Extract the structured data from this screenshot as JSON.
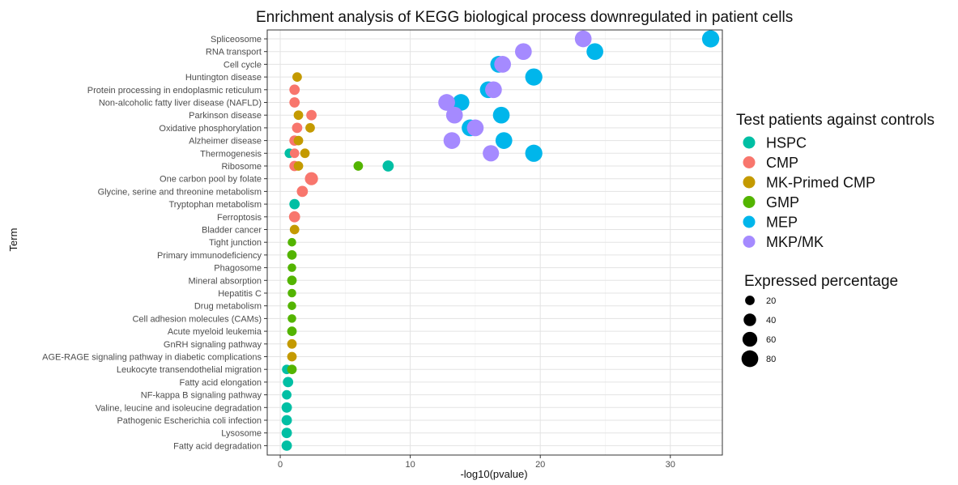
{
  "chart_data": {
    "type": "scatter",
    "title": "Enrichment analysis of KEGG biological process downregulated in patient cells",
    "xlabel": "-log10(pvalue)",
    "ylabel": "Term",
    "xlim": [
      -1,
      34
    ],
    "xticks": [
      0,
      10,
      20,
      30
    ],
    "grid": true,
    "legend_placement": "right",
    "color_legend_title": "Test patients against controls",
    "size_legend_title": "Expressed percentage",
    "size_legend_values": [
      20,
      40,
      60,
      80
    ],
    "terms": [
      "Spliceosome",
      "RNA transport",
      "Cell cycle",
      "Huntington disease",
      "Protein processing in endoplasmic reticulum",
      "Non-alcoholic fatty liver disease (NAFLD)",
      "Parkinson disease",
      "Oxidative phosphorylation",
      "Alzheimer disease",
      "Thermogenesis",
      "Ribosome",
      "One carbon pool by folate",
      "Glycine, serine and threonine metabolism",
      "Tryptophan metabolism",
      "Ferroptosis",
      "Bladder cancer",
      "Tight junction",
      "Primary immunodeficiency",
      "Phagosome",
      "Mineral absorption",
      "Hepatitis C",
      "Drug metabolism",
      "Cell adhesion molecules (CAMs)",
      "Acute myeloid leukemia",
      "GnRH signaling pathway",
      "AGE-RAGE signaling pathway in diabetic complications",
      "Leukocyte transendothelial migration",
      "Fatty acid elongation",
      "NF-kappa B signaling pathway",
      "Valine, leucine and isoleucine degradation",
      "Pathogenic Escherichia coli infection",
      "Lysosome",
      "Fatty acid degradation"
    ],
    "series": [
      {
        "name": "HSPC",
        "color": "#00BFA4",
        "points": [
          {
            "term": "Thermogenesis",
            "x": 0.7,
            "size": 20
          },
          {
            "term": "Ribosome",
            "x": 8.3,
            "size": 30
          },
          {
            "term": "Tryptophan metabolism",
            "x": 1.1,
            "size": 25
          },
          {
            "term": "Leukocyte transendothelial migration",
            "x": 0.5,
            "size": 20
          },
          {
            "term": "Fatty acid elongation",
            "x": 0.6,
            "size": 25
          },
          {
            "term": "NF-kappa B signaling pathway",
            "x": 0.5,
            "size": 20
          },
          {
            "term": "Valine, leucine and isoleucine degradation",
            "x": 0.5,
            "size": 25
          },
          {
            "term": "Pathogenic Escherichia coli infection",
            "x": 0.5,
            "size": 25
          },
          {
            "term": "Lysosome",
            "x": 0.5,
            "size": 25
          },
          {
            "term": "Fatty acid degradation",
            "x": 0.5,
            "size": 25
          }
        ]
      },
      {
        "name": "CMP",
        "color": "#F8766D",
        "points": [
          {
            "term": "Protein processing in endoplasmic reticulum",
            "x": 1.1,
            "size": 25
          },
          {
            "term": "Non-alcoholic fatty liver disease (NAFLD)",
            "x": 1.1,
            "size": 25
          },
          {
            "term": "Parkinson disease",
            "x": 2.4,
            "size": 25
          },
          {
            "term": "Oxidative phosphorylation",
            "x": 1.3,
            "size": 25
          },
          {
            "term": "Alzheimer disease",
            "x": 1.1,
            "size": 25
          },
          {
            "term": "Thermogenesis",
            "x": 1.1,
            "size": 20
          },
          {
            "term": "Ribosome",
            "x": 1.1,
            "size": 25
          },
          {
            "term": "One carbon pool by folate",
            "x": 2.4,
            "size": 45
          },
          {
            "term": "Glycine, serine and threonine metabolism",
            "x": 1.7,
            "size": 30
          },
          {
            "term": "Ferroptosis",
            "x": 1.1,
            "size": 30
          }
        ]
      },
      {
        "name": "MK-Primed CMP",
        "color": "#C49A00",
        "points": [
          {
            "term": "Huntington disease",
            "x": 1.3,
            "size": 20
          },
          {
            "term": "Parkinson disease",
            "x": 1.4,
            "size": 20
          },
          {
            "term": "Oxidative phosphorylation",
            "x": 2.3,
            "size": 20
          },
          {
            "term": "Alzheimer disease",
            "x": 1.4,
            "size": 20
          },
          {
            "term": "Thermogenesis",
            "x": 1.9,
            "size": 20
          },
          {
            "term": "Ribosome",
            "x": 1.4,
            "size": 20
          },
          {
            "term": "Bladder cancer",
            "x": 1.1,
            "size": 20
          },
          {
            "term": "GnRH signaling pathway",
            "x": 0.9,
            "size": 20
          },
          {
            "term": "AGE-RAGE signaling pathway in diabetic complications",
            "x": 0.9,
            "size": 20
          }
        ]
      },
      {
        "name": "GMP",
        "color": "#53B400",
        "points": [
          {
            "term": "Ribosome",
            "x": 6.0,
            "size": 20
          },
          {
            "term": "Tight junction",
            "x": 0.9,
            "size": 15
          },
          {
            "term": "Primary immunodeficiency",
            "x": 0.9,
            "size": 20
          },
          {
            "term": "Phagosome",
            "x": 0.9,
            "size": 15
          },
          {
            "term": "Mineral absorption",
            "x": 0.9,
            "size": 20
          },
          {
            "term": "Hepatitis C",
            "x": 0.9,
            "size": 15
          },
          {
            "term": "Drug metabolism",
            "x": 0.9,
            "size": 15
          },
          {
            "term": "Cell adhesion molecules (CAMs)",
            "x": 0.9,
            "size": 15
          },
          {
            "term": "Acute myeloid leukemia",
            "x": 0.9,
            "size": 20
          },
          {
            "term": "Leukocyte transendothelial migration",
            "x": 0.9,
            "size": 20
          }
        ]
      },
      {
        "name": "MEP",
        "color": "#00B6EB",
        "points": [
          {
            "term": "Spliceosome",
            "x": 33.1,
            "size": 85
          },
          {
            "term": "RNA transport",
            "x": 24.2,
            "size": 80
          },
          {
            "term": "Cell cycle",
            "x": 16.8,
            "size": 80
          },
          {
            "term": "Huntington disease",
            "x": 19.5,
            "size": 85
          },
          {
            "term": "Protein processing in endoplasmic reticulum",
            "x": 16.0,
            "size": 80
          },
          {
            "term": "Non-alcoholic fatty liver disease (NAFLD)",
            "x": 13.9,
            "size": 80
          },
          {
            "term": "Parkinson disease",
            "x": 17.0,
            "size": 80
          },
          {
            "term": "Oxidative phosphorylation",
            "x": 14.6,
            "size": 80
          },
          {
            "term": "Alzheimer disease",
            "x": 17.2,
            "size": 80
          },
          {
            "term": "Thermogenesis",
            "x": 19.5,
            "size": 85
          }
        ]
      },
      {
        "name": "MKP/MK",
        "color": "#A58AFF",
        "points": [
          {
            "term": "Spliceosome",
            "x": 23.3,
            "size": 80
          },
          {
            "term": "RNA transport",
            "x": 18.7,
            "size": 80
          },
          {
            "term": "Cell cycle",
            "x": 17.1,
            "size": 80
          },
          {
            "term": "Protein processing in endoplasmic reticulum",
            "x": 16.4,
            "size": 80
          },
          {
            "term": "Non-alcoholic fatty liver disease (NAFLD)",
            "x": 12.8,
            "size": 80
          },
          {
            "term": "Parkinson disease",
            "x": 13.4,
            "size": 80
          },
          {
            "term": "Oxidative phosphorylation",
            "x": 15.0,
            "size": 80
          },
          {
            "term": "Alzheimer disease",
            "x": 13.2,
            "size": 80
          },
          {
            "term": "Thermogenesis",
            "x": 16.2,
            "size": 75
          }
        ]
      }
    ]
  }
}
